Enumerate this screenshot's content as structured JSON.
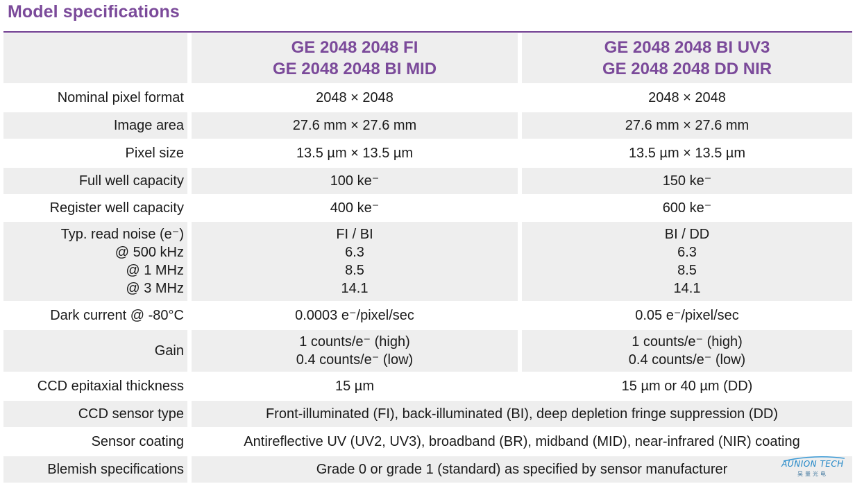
{
  "title": "Model specifications",
  "models": [
    {
      "line1": "GE 2048 2048 FI",
      "line2": "GE 2048 2048 BI MID"
    },
    {
      "line1": "GE 2048 2048 BI UV3",
      "line2": "GE 2048 2048 DD NIR"
    }
  ],
  "rows": {
    "pixel_format": {
      "label": "Nominal pixel format",
      "a": "2048 × 2048",
      "b": "2048 × 2048"
    },
    "image_area": {
      "label": "Image area",
      "a": "27.6 mm × 27.6 mm",
      "b": "27.6 mm × 27.6 mm"
    },
    "pixel_size": {
      "label": "Pixel size",
      "a": "13.5 µm × 13.5 µm",
      "b": "13.5 µm × 13.5 µm"
    },
    "full_well": {
      "label": "Full well capacity",
      "a": "100 ke⁻",
      "b": "150 ke⁻"
    },
    "register_well": {
      "label": "Register well capacity",
      "a": "400 ke⁻",
      "b": "600 ke⁻"
    },
    "read_noise": {
      "label_lines": [
        "Typ. read noise (e⁻)",
        "@ 500 kHz",
        "@ 1 MHz",
        "@ 3 MHz"
      ],
      "a_lines": [
        "FI / BI",
        "6.3",
        "8.5",
        "14.1"
      ],
      "b_lines": [
        "BI / DD",
        "6.3",
        "8.5",
        "14.1"
      ]
    },
    "dark_current": {
      "label": "Dark current @ -80°C",
      "a": "0.0003 e⁻/pixel/sec",
      "b": "0.05 e⁻/pixel/sec"
    },
    "gain": {
      "label": "Gain",
      "a_lines": [
        "1 counts/e⁻ (high)",
        "0.4 counts/e⁻ (low)"
      ],
      "b_lines": [
        "1 counts/e⁻ (high)",
        "0.4 counts/e⁻ (low)"
      ]
    },
    "epitaxial": {
      "label": "CCD epitaxial thickness",
      "a": "15 µm",
      "b": "15 µm or 40 µm (DD)"
    },
    "sensor_type": {
      "label": "CCD sensor type",
      "value": "Front-illuminated (FI), back-illuminated (BI), deep depletion fringe suppression (DD)"
    },
    "coating": {
      "label": "Sensor coating",
      "value": "Antireflective UV (UV2, UV3), broadband (BR), midband (MID), near-infrared (NIR) coating"
    },
    "blemish": {
      "label": "Blemish specifications",
      "value": "Grade 0 or grade 1 (standard) as specified by sensor manufacturer"
    }
  },
  "watermark": {
    "brand": "AUNION TECH",
    "sub": "昊量光电"
  },
  "colors": {
    "accent": "#7b4a9a",
    "rule": "#6e3b8f",
    "row_shade": "#eeeeee"
  }
}
